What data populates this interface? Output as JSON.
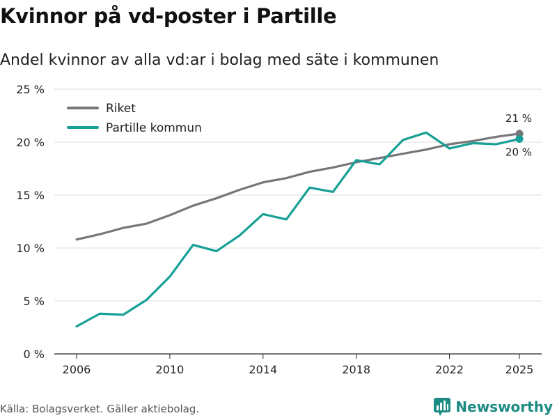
{
  "header": {
    "title": "Kvinnor på vd-poster i Partille",
    "subtitle": "Andel kvinnor av alla vd:ar i bolag med säte i kommunen"
  },
  "footer": {
    "source": "Källa: Bolagsverket. Gäller aktiebolag.",
    "brand": "Newsworthy"
  },
  "colors": {
    "riket": "#76767b",
    "partille": "#17a096",
    "grid": "#dddddd",
    "brand": "#1b8b84"
  },
  "chart_data": {
    "type": "line",
    "title": "Kvinnor på vd-poster i Partille",
    "subtitle": "Andel kvinnor av alla vd:ar i bolag med säte i kommunen",
    "xlabel": "",
    "ylabel": "",
    "x": [
      2006,
      2007,
      2008,
      2009,
      2010,
      2011,
      2012,
      2013,
      2014,
      2015,
      2016,
      2017,
      2018,
      2019,
      2020,
      2021,
      2022,
      2023,
      2024,
      2025
    ],
    "xlim": [
      2006,
      2025
    ],
    "ylim": [
      0,
      25
    ],
    "x_ticks": [
      2006,
      2010,
      2014,
      2018,
      2022,
      2025
    ],
    "y_ticks": [
      0,
      5,
      10,
      15,
      20,
      25
    ],
    "y_tick_labels": [
      "0 %",
      "5 %",
      "10 %",
      "15 %",
      "20 %",
      "25 %"
    ],
    "grid": true,
    "legend_position": "top-left",
    "series": [
      {
        "name": "Riket",
        "color": "#76767b",
        "values": [
          10.8,
          11.3,
          11.9,
          12.3,
          13.1,
          14.0,
          14.7,
          15.5,
          16.2,
          16.6,
          17.2,
          17.6,
          18.1,
          18.5,
          18.9,
          19.3,
          19.8,
          20.1,
          20.5,
          20.8
        ],
        "end_label": "21 %"
      },
      {
        "name": "Partille kommun",
        "color": "#17a096",
        "values": [
          2.6,
          3.8,
          3.7,
          5.1,
          7.3,
          10.3,
          9.7,
          11.2,
          13.2,
          12.7,
          15.7,
          15.3,
          18.3,
          17.9,
          20.2,
          20.9,
          19.4,
          19.9,
          19.8,
          20.3
        ],
        "end_label": "20 %"
      }
    ]
  }
}
